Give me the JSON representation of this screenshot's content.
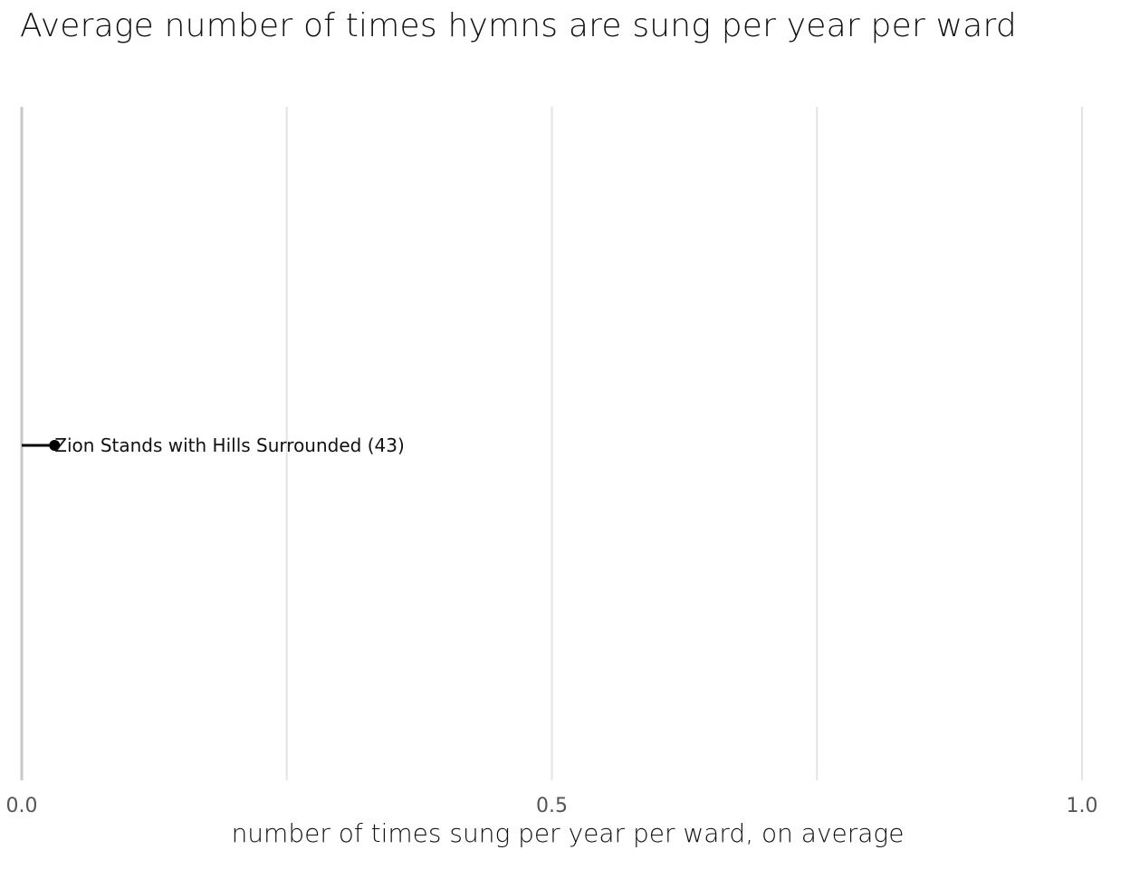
{
  "chart_data": {
    "type": "scatter",
    "title": "Average number of times hymns are sung per year per ward",
    "xlabel": "number of times sung per year per ward, on average",
    "ylabel": "",
    "xlim": [
      0,
      1
    ],
    "x_ticks": [
      0,
      0.25,
      0.5,
      0.75,
      1
    ],
    "x_tick_labels": [
      "0.0",
      "",
      "0.5",
      "",
      "1.0"
    ],
    "grid": true,
    "points": [
      {
        "label": "Zion Stands with Hills Surrounded (43)",
        "x": 0.031,
        "segment_from": 0
      }
    ],
    "colors": {
      "point": "#000000",
      "grid": "#e3e3e3",
      "baseline": "#c8c8c8"
    }
  }
}
